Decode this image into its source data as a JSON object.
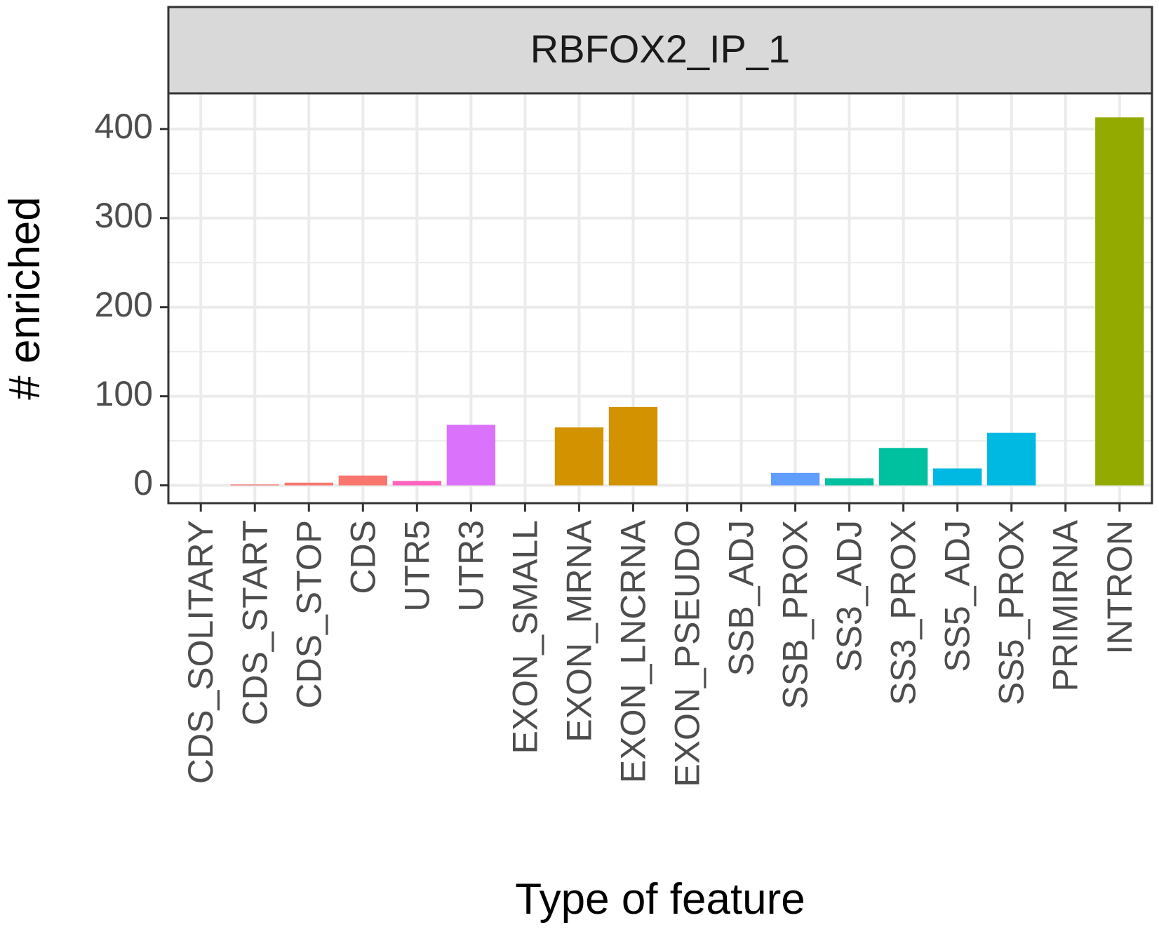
{
  "chart_data": {
    "type": "bar",
    "panel_title": "RBFOX2_IP_1",
    "xlabel": "Type of feature",
    "ylabel": "# enriched",
    "ylim": [
      -20,
      440
    ],
    "yticks": [
      0,
      100,
      200,
      300,
      400
    ],
    "ytick_labels": [
      "0",
      "100",
      "200",
      "300",
      "400"
    ],
    "grid": true,
    "legend": "none",
    "categories": [
      "CDS_SOLITARY",
      "CDS_START",
      "CDS_STOP",
      "CDS",
      "UTR5",
      "UTR3",
      "EXON_SMALL",
      "EXON_MRNA",
      "EXON_LNCRNA",
      "EXON_PSEUDO",
      "SSB_ADJ",
      "SSB_PROX",
      "SS3_ADJ",
      "SS3_PROX",
      "SS5_ADJ",
      "SS5_PROX",
      "PRIMIRNA",
      "INTRON"
    ],
    "values": [
      0,
      1,
      3,
      11,
      5,
      68,
      0,
      65,
      88,
      0,
      0,
      14,
      8,
      42,
      19,
      59,
      0,
      413
    ],
    "colors": [
      "#F8766D",
      "#F8766D",
      "#F8766D",
      "#F8766D",
      "#FF62BC",
      "#DB72FB",
      "#D39200",
      "#D39200",
      "#D39200",
      "#D39200",
      "#00BA38",
      "#619CFF",
      "#00C19F",
      "#00C19F",
      "#00B9E3",
      "#00B9E3",
      "#00BA38",
      "#93AA00"
    ]
  }
}
